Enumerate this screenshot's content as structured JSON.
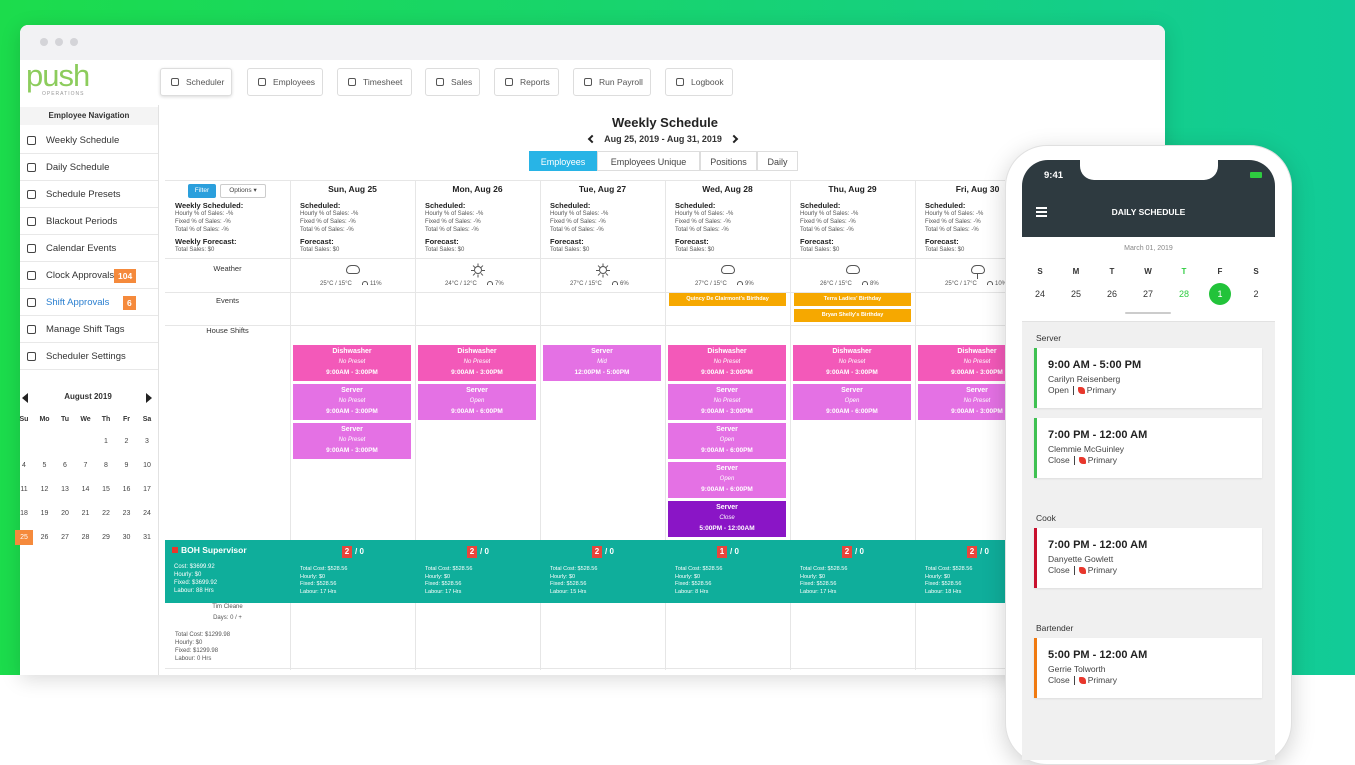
{
  "brand": {
    "logo": "push",
    "sub": "OPERATIONS"
  },
  "toolbar": [
    "Scheduler",
    "Employees",
    "Timesheet",
    "Sales",
    "Reports",
    "Run Payroll",
    "Logbook"
  ],
  "nav": {
    "title": "Employee Navigation",
    "items": [
      {
        "label": "Weekly Schedule"
      },
      {
        "label": "Daily Schedule"
      },
      {
        "label": "Schedule Presets"
      },
      {
        "label": "Blackout Periods"
      },
      {
        "label": "Calendar Events"
      },
      {
        "label": "Clock Approvals",
        "badge": "104"
      },
      {
        "label": "Shift Approvals",
        "badge": "6"
      },
      {
        "label": "Manage Shift Tags"
      },
      {
        "label": "Scheduler Settings"
      }
    ]
  },
  "mini_calendar": {
    "month": "August 2019",
    "weekdays": [
      "Su",
      "Mo",
      "Tu",
      "We",
      "Th",
      "Fr",
      "Sa"
    ],
    "weeks": [
      [
        null,
        null,
        null,
        null,
        "1",
        "2",
        "3"
      ],
      [
        "4",
        "5",
        "6",
        "7",
        "8",
        "9",
        "10"
      ],
      [
        "11",
        "12",
        "13",
        "14",
        "15",
        "16",
        "17"
      ],
      [
        "18",
        "19",
        "20",
        "21",
        "22",
        "23",
        "24"
      ],
      [
        "25",
        "26",
        "27",
        "28",
        "29",
        "30",
        "31"
      ]
    ],
    "selected": "25"
  },
  "schedule": {
    "title": "Weekly Schedule",
    "range": "Aug 25, 2019 - Aug 31, 2019",
    "tabs": [
      "Employees",
      "Employees Unique",
      "Positions",
      "Daily"
    ],
    "active_tab": "Employees",
    "filter": "Filter",
    "options": "Options ▾",
    "week_summary": [
      {
        "text": "Weekly Scheduled:",
        "bold": true
      },
      {
        "text": "Hourly % of Sales: -%"
      },
      {
        "text": "Fixed % of Sales: -%"
      },
      {
        "text": "Total % of Sales: -%"
      },
      {
        "text": "Weekly Forecast:",
        "bold": true
      },
      {
        "text": "Total Sales: $0"
      }
    ],
    "day_summary": [
      {
        "text": "Scheduled:",
        "bold": true
      },
      {
        "text": "Hourly % of Sales: -%"
      },
      {
        "text": "Fixed % of Sales: -%"
      },
      {
        "text": "Total % of Sales: -%"
      },
      {
        "text": "Forecast:",
        "bold": true
      },
      {
        "text": "Total Sales: $0"
      }
    ],
    "row_labels": {
      "weather": "Weather",
      "events": "Events",
      "house": "House Shifts"
    },
    "days": [
      {
        "name": "Sun, Aug 25",
        "icon": "cloud",
        "temp": "25°C / 15°C",
        "precip": "11%",
        "events": [],
        "shifts": [
          {
            "role": "Dishwasher",
            "note": "No Preset",
            "time": "9:00AM - 3:00PM",
            "color": "#f359b9"
          },
          {
            "role": "Server",
            "note": "No Preset",
            "time": "9:00AM - 3:00PM",
            "color": "#e471e4"
          },
          {
            "role": "Server",
            "note": "No Preset",
            "time": "9:00AM - 3:00PM",
            "color": "#e471e4"
          }
        ],
        "count": "2",
        "count_of": "/ 0",
        "totals": [
          "Total Cost: $528.56",
          "Hourly: $0",
          "Fixed: $528.56",
          "Labour: 17 Hrs"
        ]
      },
      {
        "name": "Mon, Aug 26",
        "icon": "sun",
        "temp": "24°C / 12°C",
        "precip": "7%",
        "events": [],
        "shifts": [
          {
            "role": "Dishwasher",
            "note": "No Preset",
            "time": "9:00AM - 3:00PM",
            "color": "#f359b9"
          },
          {
            "role": "Server",
            "note": "Open",
            "time": "9:00AM - 6:00PM",
            "color": "#e471e4"
          }
        ],
        "count": "2",
        "count_of": "/ 0",
        "totals": [
          "Total Cost: $528.56",
          "Hourly: $0",
          "Fixed: $528.56",
          "Labour: 17 Hrs"
        ]
      },
      {
        "name": "Tue, Aug 27",
        "icon": "sun",
        "temp": "27°C / 15°C",
        "precip": "6%",
        "events": [],
        "shifts": [
          {
            "role": "Server",
            "note": "Mid",
            "time": "12:00PM - 5:00PM",
            "color": "#e471e4"
          }
        ],
        "count": "2",
        "count_of": "/ 0",
        "totals": [
          "Total Cost: $528.56",
          "Hourly: $0",
          "Fixed: $528.56",
          "Labour: 15 Hrs"
        ]
      },
      {
        "name": "Wed, Aug 28",
        "icon": "cloud",
        "temp": "27°C / 15°C",
        "precip": "9%",
        "events": [
          "Quincy De Clairmont's Birthday"
        ],
        "shifts": [
          {
            "role": "Dishwasher",
            "note": "No Preset",
            "time": "9:00AM - 3:00PM",
            "color": "#f359b9"
          },
          {
            "role": "Server",
            "note": "No Preset",
            "time": "9:00AM - 3:00PM",
            "color": "#e471e4"
          },
          {
            "role": "Server",
            "note": "Open",
            "time": "9:00AM - 6:00PM",
            "color": "#e471e4"
          },
          {
            "role": "Server",
            "note": "Open",
            "time": "9:00AM - 6:00PM",
            "color": "#e471e4"
          },
          {
            "role": "Server",
            "note": "Close",
            "time": "5:00PM - 12:00AM",
            "color": "#8a15c6"
          }
        ],
        "count": "1",
        "count_of": "/ 0",
        "totals": [
          "Total Cost: $528.56",
          "Hourly: $0",
          "Fixed: $528.56",
          "Labour: 8 Hrs"
        ]
      },
      {
        "name": "Thu, Aug 29",
        "icon": "cloud",
        "temp": "26°C / 15°C",
        "precip": "8%",
        "events": [
          "Terra Ladies' Birthday",
          "Bryan Shelly's Birthday"
        ],
        "shifts": [
          {
            "role": "Dishwasher",
            "note": "No Preset",
            "time": "9:00AM - 3:00PM",
            "color": "#f359b9"
          },
          {
            "role": "Server",
            "note": "Open",
            "time": "9:00AM - 6:00PM",
            "color": "#e471e4"
          }
        ],
        "count": "2",
        "count_of": "/ 0",
        "totals": [
          "Total Cost: $528.56",
          "Hourly: $0",
          "Fixed: $528.56",
          "Labour: 17 Hrs"
        ]
      },
      {
        "name": "Fri, Aug 30",
        "icon": "rain",
        "temp": "25°C / 17°C",
        "precip": "10%",
        "events": [],
        "shifts": [
          {
            "role": "Dishwasher",
            "note": "No Preset",
            "time": "9:00AM - 3:00PM",
            "color": "#f359b9"
          },
          {
            "role": "Server",
            "note": "No Preset",
            "time": "9:00AM - 3:00PM",
            "color": "#e471e4"
          }
        ],
        "count": "2",
        "count_of": "/ 0",
        "totals": [
          "Total Cost: $528.56",
          "Hourly: $0",
          "Fixed: $528.56",
          "Labour: 18 Hrs"
        ]
      }
    ],
    "supervisor": {
      "title": "BOH Supervisor",
      "lines": [
        "Cost: $3699.92",
        "Hourly: $0",
        "Fixed: $3699.92",
        "Labour: 88 Hrs"
      ]
    },
    "employee": {
      "name": "Tim Cleane",
      "days": "Days: 0 / +",
      "lines": [
        "Total Cost: $1299.98",
        "Hourly: $0",
        "Fixed: $1299.98",
        "Labour: 0 Hrs"
      ]
    }
  },
  "phone": {
    "time": "9:41",
    "title": "DAILY SCHEDULE",
    "date": "March 01, 2019",
    "week_letters": [
      "S",
      "M",
      "T",
      "W",
      "T",
      "F",
      "S"
    ],
    "week_days": [
      "24",
      "25",
      "26",
      "27",
      "28",
      "1",
      "2"
    ],
    "today_index": 4,
    "selected_index": 5,
    "groups": [
      {
        "name": "Server",
        "shifts": [
          {
            "time": "9:00 AM - 5:00 PM",
            "person": "Carilyn Reisenberg",
            "status": "Open",
            "tag": "Primary",
            "color": "#3fc152"
          },
          {
            "time": "7:00 PM - 12:00 AM",
            "person": "Clemmie McGuinley",
            "status": "Close",
            "tag": "Primary",
            "color": "#3fc152"
          }
        ]
      },
      {
        "name": "Cook",
        "shifts": [
          {
            "time": "7:00 PM - 12:00 AM",
            "person": "Danyette Gowlett",
            "status": "Close",
            "tag": "Primary",
            "color": "#c8102e"
          }
        ]
      },
      {
        "name": "Bartender",
        "shifts": [
          {
            "time": "5:00 PM - 12:00 AM",
            "person": "Gerrie Tolworth",
            "status": "Close",
            "tag": "Primary",
            "color": "#f07a10"
          }
        ]
      }
    ]
  }
}
